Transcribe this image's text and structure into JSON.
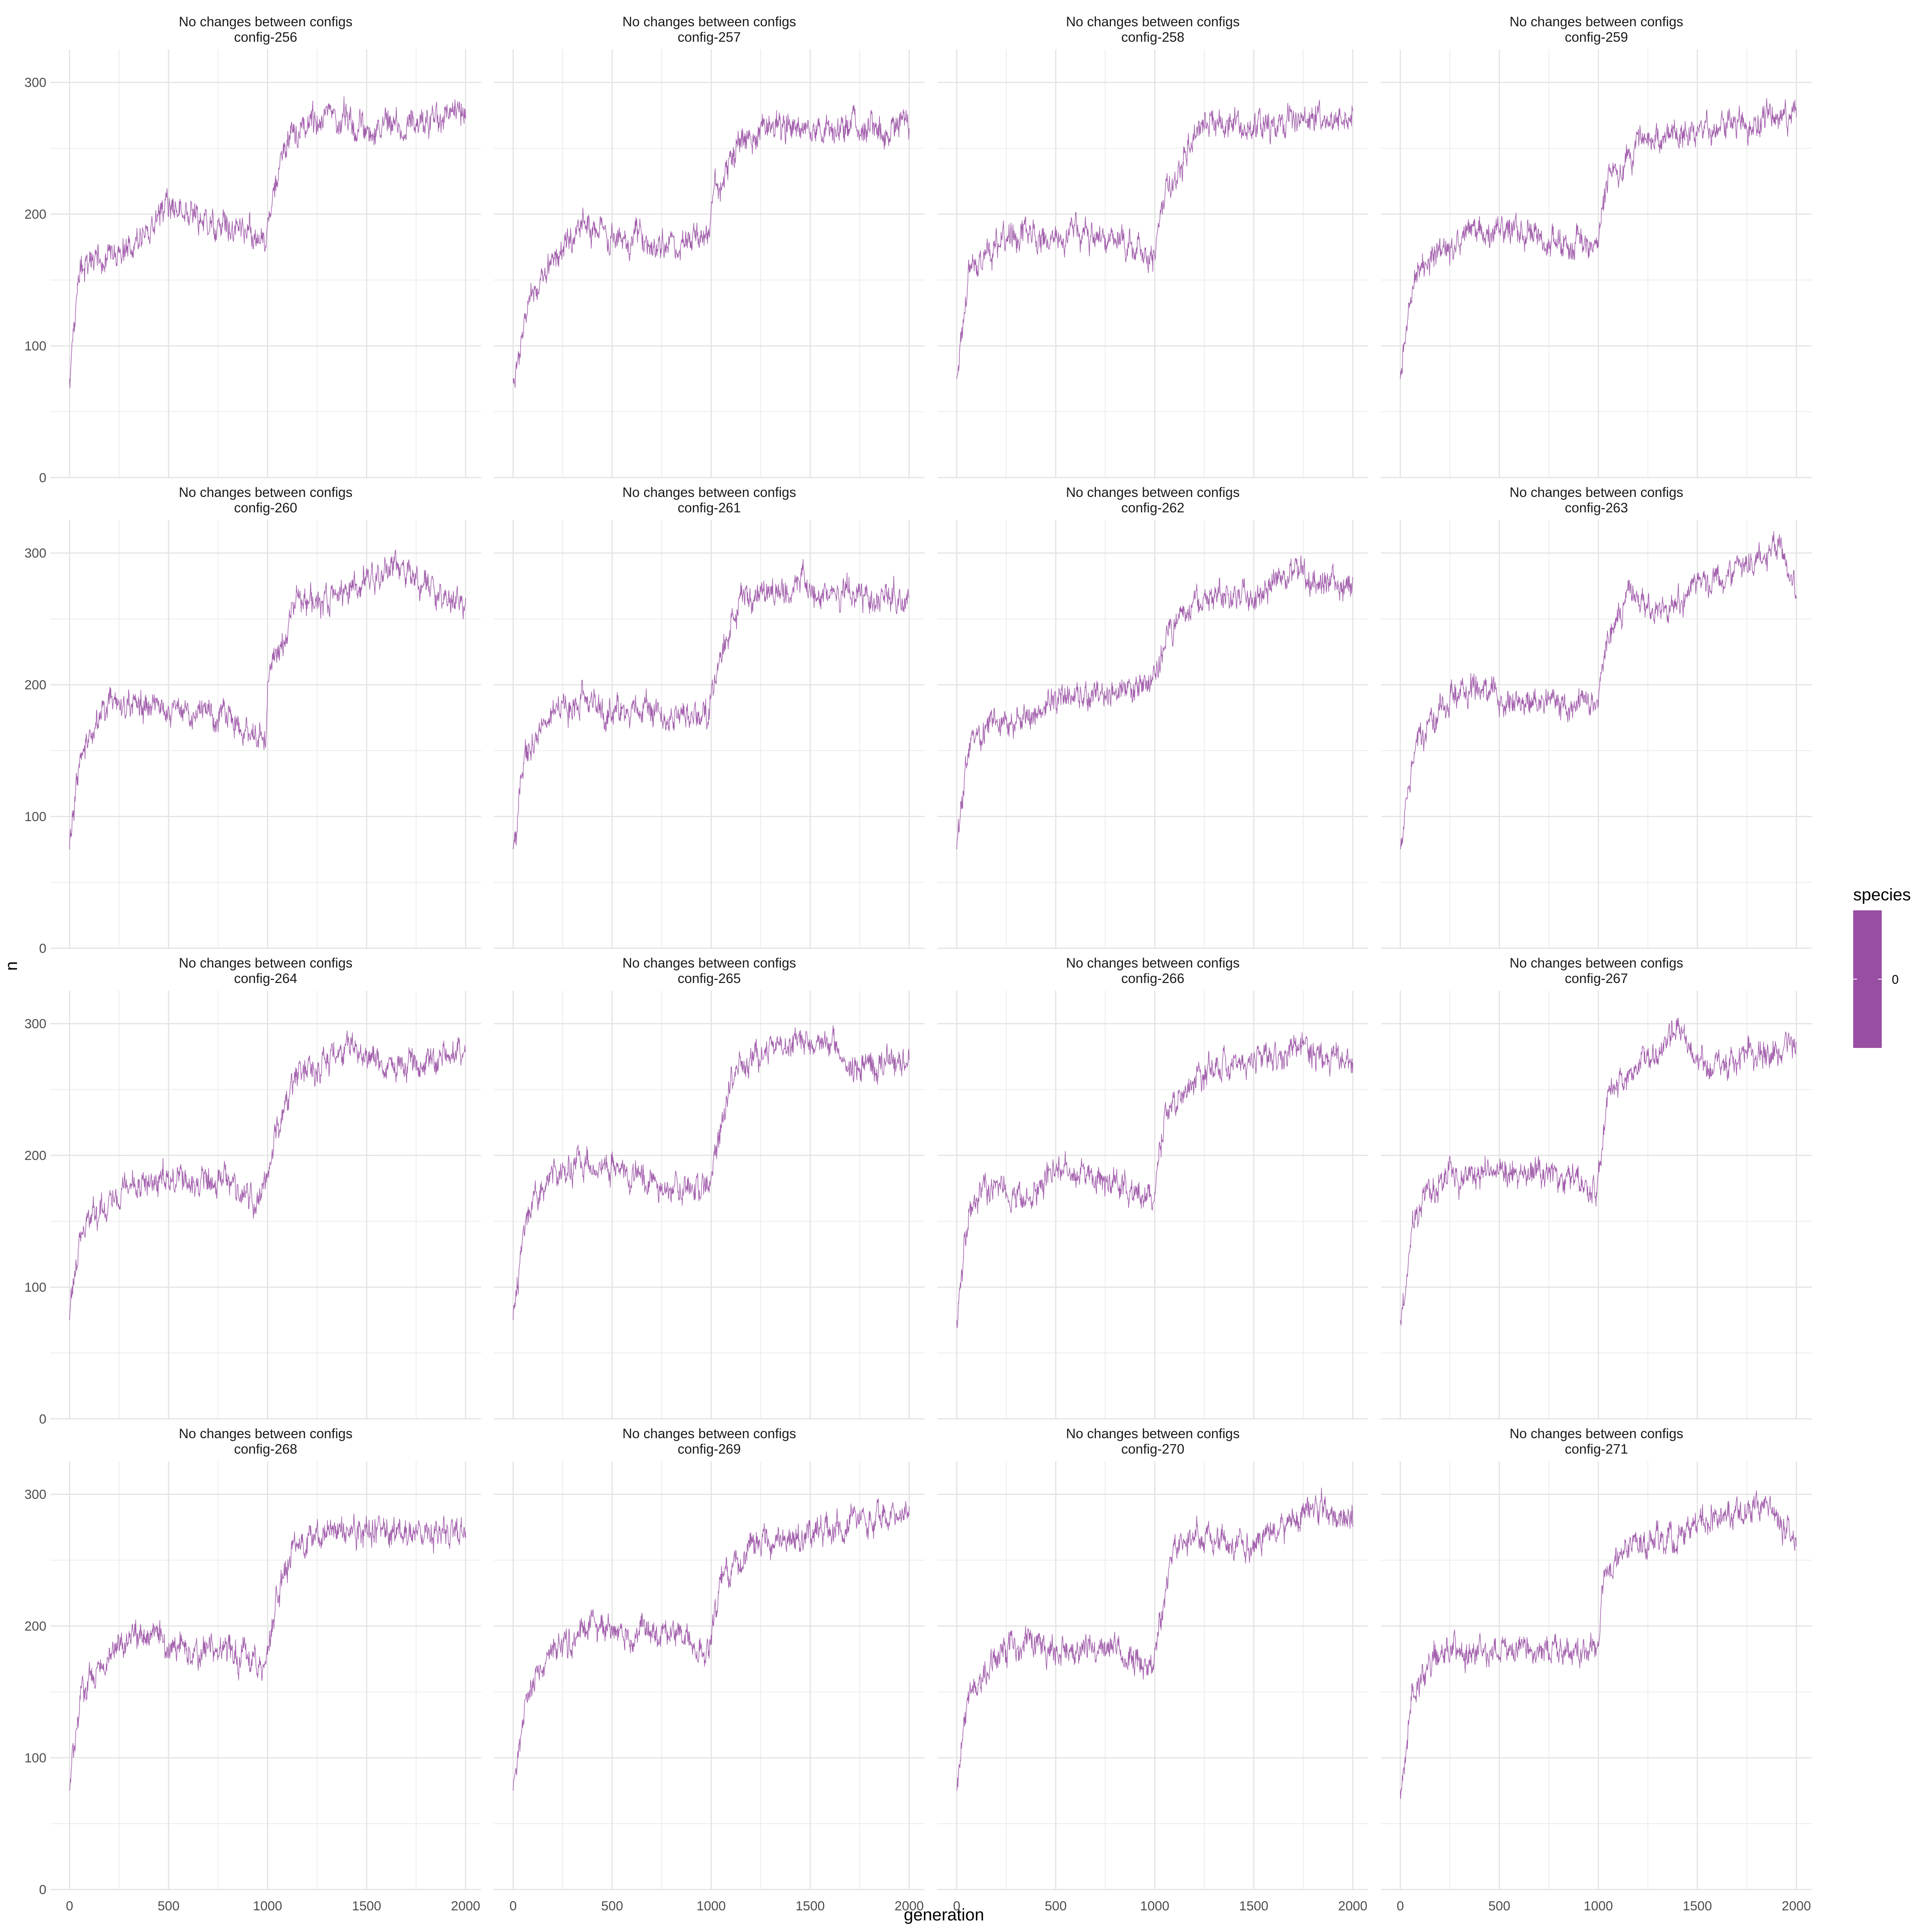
{
  "chart_data": {
    "type": "line",
    "xlabel": "generation",
    "ylabel": "n",
    "xlim": [
      0,
      2000
    ],
    "ylim": [
      0,
      325
    ],
    "x_ticks": [
      0,
      500,
      1000,
      1500,
      2000
    ],
    "y_ticks": [
      0,
      100,
      200,
      300
    ],
    "grid": true,
    "line_color": "#984ea3",
    "legend": {
      "title": "species",
      "entries": [
        "0"
      ],
      "color": "#984ea3",
      "position": "right"
    },
    "panels": [
      {
        "title": [
          "No changes between configs",
          "config-256"
        ],
        "profile": {
          "x": [
            0,
            60,
            200,
            350,
            500,
            800,
            990,
            1010,
            1100,
            1300,
            1500,
            2000
          ],
          "y": [
            75,
            158,
            170,
            182,
            205,
            192,
            182,
            205,
            255,
            275,
            262,
            278
          ]
        }
      },
      {
        "title": [
          "No changes between configs",
          "config-257"
        ],
        "profile": {
          "x": [
            0,
            60,
            200,
            350,
            500,
            800,
            990,
            1020,
            1150,
            1400,
            1600,
            2000
          ],
          "y": [
            75,
            125,
            165,
            190,
            185,
            175,
            185,
            218,
            255,
            268,
            262,
            270
          ]
        }
      },
      {
        "title": [
          "No changes between configs",
          "config-258"
        ],
        "profile": {
          "x": [
            0,
            60,
            200,
            350,
            500,
            800,
            990,
            1050,
            1250,
            1500,
            1800,
            2000
          ],
          "y": [
            75,
            155,
            175,
            185,
            182,
            182,
            165,
            220,
            268,
            268,
            272,
            275
          ]
        }
      },
      {
        "title": [
          "No changes between configs",
          "config-259"
        ],
        "profile": {
          "x": [
            0,
            60,
            200,
            350,
            500,
            800,
            990,
            1050,
            1200,
            1500,
            1800,
            2000
          ],
          "y": [
            75,
            148,
            172,
            182,
            188,
            180,
            180,
            225,
            255,
            265,
            272,
            275
          ]
        }
      },
      {
        "title": [
          "No changes between configs",
          "config-260"
        ],
        "profile": {
          "x": [
            0,
            60,
            200,
            350,
            500,
            800,
            990,
            1000,
            1150,
            1400,
            1650,
            2000
          ],
          "y": [
            75,
            150,
            190,
            185,
            182,
            175,
            155,
            200,
            260,
            272,
            290,
            258
          ]
        }
      },
      {
        "title": [
          "No changes between configs",
          "config-261"
        ],
        "profile": {
          "x": [
            0,
            60,
            200,
            350,
            500,
            800,
            990,
            1050,
            1150,
            1400,
            1600,
            2000
          ],
          "y": [
            75,
            145,
            175,
            190,
            182,
            175,
            180,
            230,
            265,
            272,
            270,
            265
          ]
        }
      },
      {
        "title": [
          "No changes between configs",
          "config-262"
        ],
        "profile": {
          "x": [
            0,
            60,
            200,
            350,
            500,
            800,
            990,
            1050,
            1200,
            1500,
            1700,
            2000
          ],
          "y": [
            75,
            155,
            170,
            175,
            190,
            195,
            205,
            230,
            262,
            270,
            285,
            272
          ]
        }
      },
      {
        "title": [
          "No changes between configs",
          "config-263"
        ],
        "profile": {
          "x": [
            0,
            60,
            200,
            350,
            500,
            800,
            990,
            1050,
            1150,
            1300,
            1500,
            1900,
            2000
          ],
          "y": [
            75,
            145,
            185,
            200,
            188,
            185,
            185,
            235,
            268,
            255,
            272,
            305,
            278
          ]
        }
      },
      {
        "title": [
          "No changes between configs",
          "config-264"
        ],
        "profile": {
          "x": [
            0,
            60,
            200,
            350,
            500,
            800,
            950,
            1000,
            1150,
            1400,
            1600,
            2000
          ],
          "y": [
            75,
            142,
            165,
            180,
            182,
            182,
            160,
            190,
            260,
            285,
            265,
            280
          ]
        }
      },
      {
        "title": [
          "No changes between configs",
          "config-265"
        ],
        "profile": {
          "x": [
            0,
            60,
            200,
            350,
            500,
            800,
            990,
            1100,
            1300,
            1550,
            1700,
            2000
          ],
          "y": [
            75,
            152,
            185,
            195,
            190,
            175,
            175,
            262,
            280,
            290,
            268,
            270
          ]
        }
      },
      {
        "title": [
          "No changes between configs",
          "config-266"
        ],
        "profile": {
          "x": [
            0,
            60,
            200,
            350,
            500,
            800,
            990,
            1050,
            1250,
            1500,
            1800,
            2000
          ],
          "y": [
            75,
            158,
            178,
            165,
            192,
            178,
            165,
            230,
            265,
            275,
            282,
            268
          ]
        }
      },
      {
        "title": [
          "No changes between configs",
          "config-267"
        ],
        "profile": {
          "x": [
            0,
            60,
            200,
            350,
            500,
            800,
            990,
            1050,
            1250,
            1400,
            1550,
            2000
          ],
          "y": [
            75,
            148,
            185,
            185,
            185,
            185,
            175,
            245,
            275,
            295,
            265,
            285
          ]
        }
      },
      {
        "title": [
          "No changes between configs",
          "config-268"
        ],
        "profile": {
          "x": [
            0,
            60,
            200,
            350,
            500,
            800,
            990,
            1050,
            1150,
            1400,
            1700,
            2000
          ],
          "y": [
            75,
            152,
            178,
            198,
            185,
            180,
            168,
            230,
            262,
            272,
            272,
            272
          ]
        }
      },
      {
        "title": [
          "No changes between configs",
          "config-269"
        ],
        "profile": {
          "x": [
            0,
            60,
            200,
            350,
            500,
            800,
            990,
            1050,
            1200,
            1500,
            1800,
            2000
          ],
          "y": [
            75,
            142,
            182,
            198,
            200,
            195,
            178,
            235,
            262,
            270,
            282,
            282
          ]
        }
      },
      {
        "title": [
          "No changes between configs",
          "config-270"
        ],
        "profile": {
          "x": [
            0,
            60,
            200,
            350,
            500,
            800,
            990,
            1100,
            1300,
            1500,
            1800,
            2000
          ],
          "y": [
            75,
            152,
            175,
            188,
            182,
            182,
            168,
            265,
            268,
            262,
            290,
            282
          ]
        }
      },
      {
        "title": [
          "No changes between configs",
          "config-271"
        ],
        "profile": {
          "x": [
            0,
            60,
            200,
            350,
            500,
            800,
            990,
            1030,
            1150,
            1400,
            1800,
            2000
          ],
          "y": [
            75,
            152,
            178,
            182,
            180,
            182,
            180,
            235,
            262,
            270,
            292,
            265
          ]
        }
      }
    ]
  }
}
